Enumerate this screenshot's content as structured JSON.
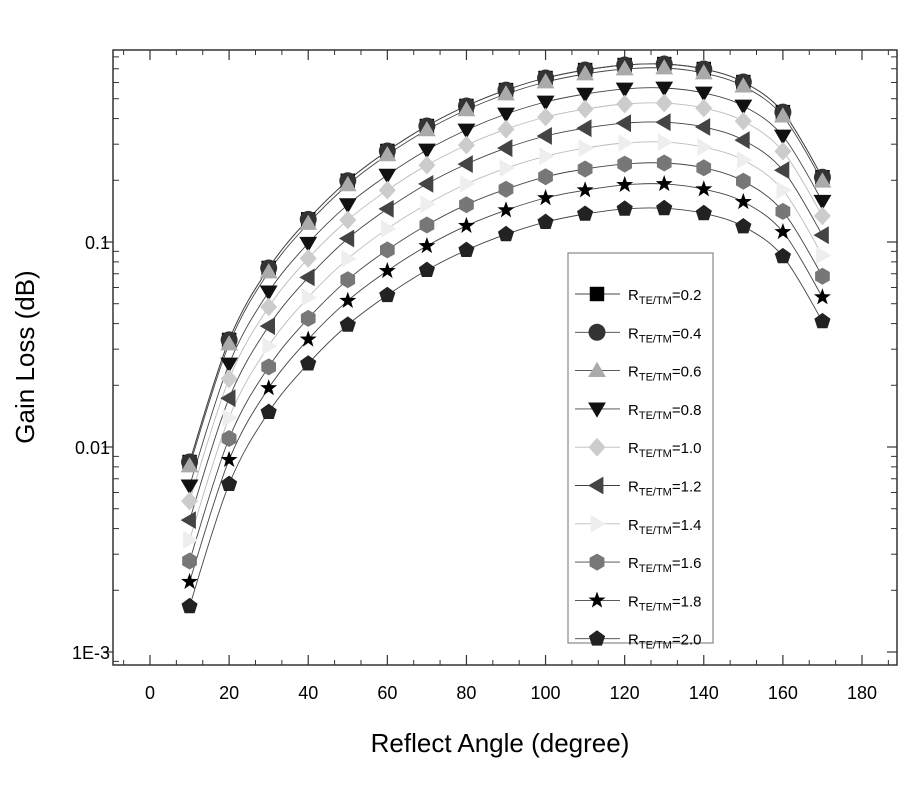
{
  "chart_data": {
    "type": "line",
    "title": "",
    "xlabel": "Reflect Angle (degree)",
    "ylabel": "Gain Loss (dB)",
    "xlim": [
      -10,
      190
    ],
    "ylim": [
      0.00086,
      0.87
    ],
    "yscale": "log",
    "x_ticks": [
      0,
      20,
      40,
      60,
      80,
      100,
      120,
      140,
      160,
      180
    ],
    "x_tick_labels": [
      "0",
      "20",
      "40",
      "60",
      "80",
      "100",
      "120",
      "140",
      "160",
      "180"
    ],
    "y_ticks": [
      0.001,
      0.01,
      0.1
    ],
    "y_tick_labels": [
      "1E-3",
      "0.01",
      "0.1"
    ],
    "grid": false,
    "legend_placement": "lower-right inside",
    "x": [
      10,
      20,
      30,
      40,
      50,
      60,
      70,
      80,
      90,
      100,
      110,
      120,
      130,
      140,
      150,
      160,
      170
    ],
    "series": [
      {
        "name": "R_TE/TM=0.2",
        "label_main": "R",
        "label_sub": "TE/TM",
        "label_value": "=0.2",
        "marker": "square",
        "color": "#000000",
        "values": [
          0.00845,
          0.0333,
          0.0747,
          0.129,
          0.199,
          0.278,
          0.368,
          0.461,
          0.551,
          0.631,
          0.69,
          0.73,
          0.738,
          0.698,
          0.603,
          0.43,
          0.207
        ]
      },
      {
        "name": "R_TE/TM=0.4",
        "label_main": "R",
        "label_sub": "TE/TM",
        "label_value": "=0.4",
        "marker": "circle",
        "color": "#333333",
        "values": [
          0.00845,
          0.0333,
          0.0747,
          0.129,
          0.199,
          0.278,
          0.368,
          0.461,
          0.551,
          0.631,
          0.69,
          0.73,
          0.738,
          0.698,
          0.603,
          0.43,
          0.207
        ]
      },
      {
        "name": "R_TE/TM=0.6",
        "label_main": "R",
        "label_sub": "TE/TM",
        "label_value": "=0.6",
        "marker": "triangle-up",
        "color": "#aaaaaa",
        "values": [
          0.00808,
          0.0318,
          0.0714,
          0.123,
          0.19,
          0.266,
          0.352,
          0.441,
          0.527,
          0.603,
          0.66,
          0.698,
          0.706,
          0.667,
          0.576,
          0.411,
          0.198
        ]
      },
      {
        "name": "R_TE/TM=0.8",
        "label_main": "R",
        "label_sub": "TE/TM",
        "label_value": "=0.8",
        "marker": "triangle-down",
        "color": "#111111",
        "values": [
          0.00646,
          0.0254,
          0.0571,
          0.0986,
          0.152,
          0.212,
          0.281,
          0.352,
          0.421,
          0.482,
          0.527,
          0.558,
          0.564,
          0.533,
          0.461,
          0.329,
          0.158
        ]
      },
      {
        "name": "R_TE/TM=1.0",
        "label_main": "R",
        "label_sub": "TE/TM",
        "label_value": "=1.0",
        "marker": "diamond",
        "color": "#cccccc",
        "values": [
          0.00545,
          0.0215,
          0.0482,
          0.0832,
          0.128,
          0.179,
          0.237,
          0.297,
          0.355,
          0.407,
          0.445,
          0.471,
          0.476,
          0.45,
          0.389,
          0.277,
          0.134
        ]
      },
      {
        "name": "R_TE/TM=1.2",
        "label_main": "R",
        "label_sub": "TE/TM",
        "label_value": "=1.2",
        "marker": "triangle-left",
        "color": "#444444",
        "values": [
          0.0044,
          0.0173,
          0.0389,
          0.0672,
          0.104,
          0.145,
          0.192,
          0.24,
          0.287,
          0.329,
          0.359,
          0.38,
          0.384,
          0.364,
          0.314,
          0.224,
          0.108
        ]
      },
      {
        "name": "R_TE/TM=1.4",
        "label_main": "R",
        "label_sub": "TE/TM",
        "label_value": "=1.4",
        "marker": "triangle-right",
        "color": "#eeeeee",
        "values": [
          0.00352,
          0.0139,
          0.0311,
          0.0537,
          0.0828,
          0.116,
          0.153,
          0.192,
          0.229,
          0.262,
          0.287,
          0.304,
          0.307,
          0.29,
          0.251,
          0.179,
          0.0861
        ]
      },
      {
        "name": "R_TE/TM=1.6",
        "label_main": "R",
        "label_sub": "TE/TM",
        "label_value": "=1.6",
        "marker": "hexagon",
        "color": "#777777",
        "values": [
          0.00278,
          0.011,
          0.0246,
          0.0424,
          0.0655,
          0.0915,
          0.121,
          0.152,
          0.181,
          0.208,
          0.227,
          0.24,
          0.243,
          0.23,
          0.198,
          0.141,
          0.0681
        ]
      },
      {
        "name": "R_TE/TM=1.8",
        "label_main": "R",
        "label_sub": "TE/TM",
        "label_value": "=1.8",
        "marker": "star",
        "color": "#000000",
        "values": [
          0.0022,
          0.00866,
          0.0194,
          0.0335,
          0.0517,
          0.0723,
          0.0957,
          0.12,
          0.143,
          0.164,
          0.179,
          0.19,
          0.192,
          0.181,
          0.157,
          0.112,
          0.0538
        ]
      },
      {
        "name": "R_TE/TM=2.0",
        "label_main": "R",
        "label_sub": "TE/TM",
        "label_value": "=2.0",
        "marker": "pentagon",
        "color": "#222222",
        "values": [
          0.00167,
          0.00659,
          0.0148,
          0.0255,
          0.0394,
          0.055,
          0.0729,
          0.0913,
          0.109,
          0.125,
          0.137,
          0.145,
          0.146,
          0.138,
          0.119,
          0.0851,
          0.041
        ]
      }
    ]
  }
}
